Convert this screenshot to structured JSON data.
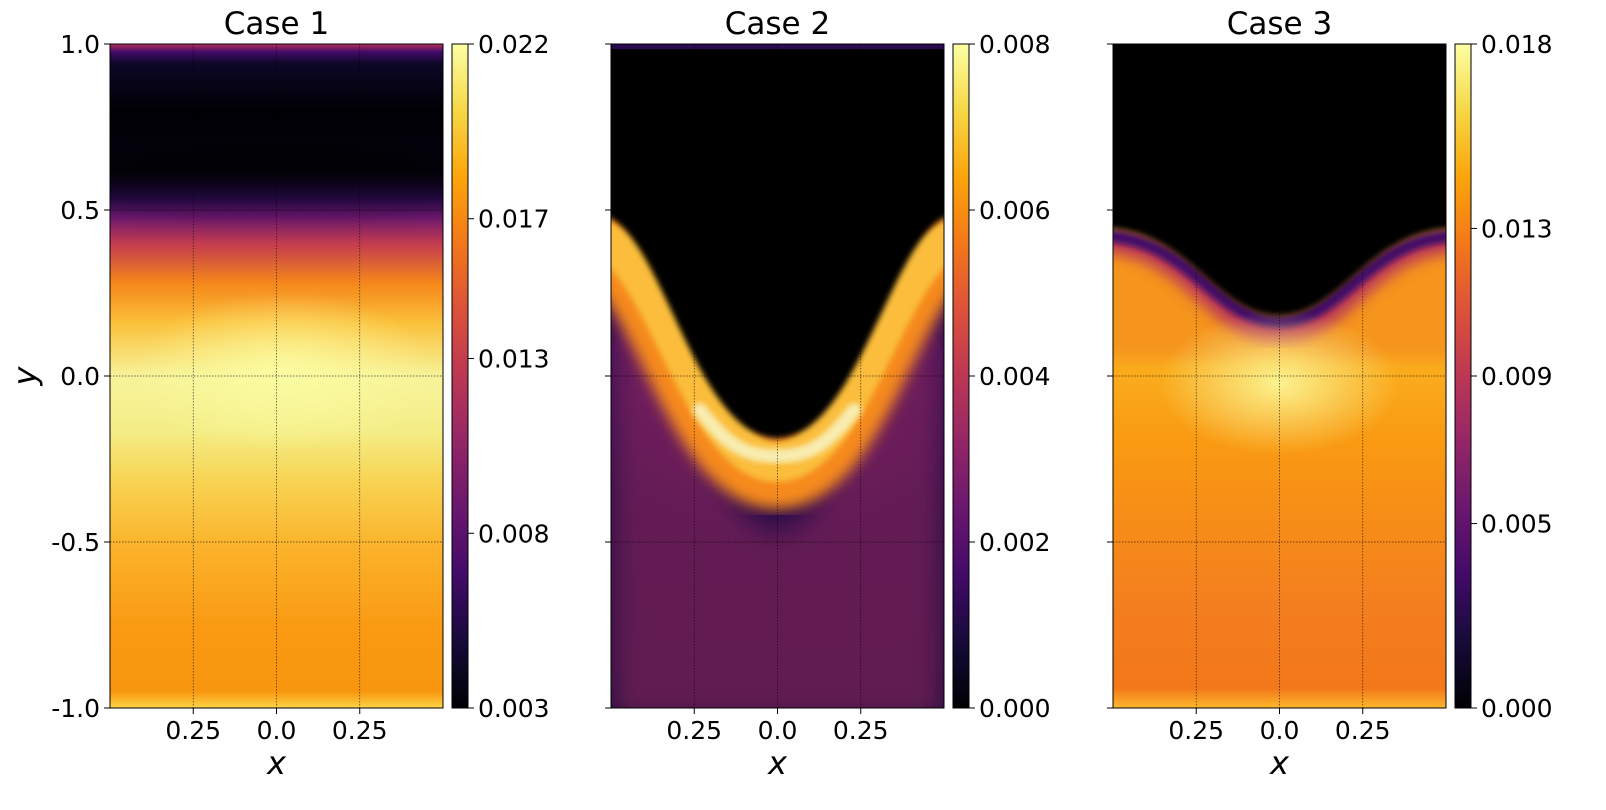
{
  "chart_data": [
    {
      "type": "heatmap",
      "title": "Case 1",
      "xlabel": "x",
      "ylabel": "y",
      "ylim": [
        -1.0,
        1.0
      ],
      "x_tick_labels": [
        "0.25",
        "0.0",
        "0.25"
      ],
      "y_tick_labels": [
        "-1.0",
        "-0.5",
        "0.0",
        "0.5",
        "1.0"
      ],
      "colormap": "inferno",
      "colorbar": {
        "range": [
          0.003,
          0.022
        ],
        "tick_labels": [
          "0.003",
          "0.008",
          "0.013",
          "0.017",
          "0.022"
        ]
      }
    },
    {
      "type": "heatmap",
      "title": "Case 2",
      "xlabel": "x",
      "ylabel": "",
      "ylim": [
        -1.0,
        1.0
      ],
      "x_tick_labels": [
        "0.25",
        "0.0",
        "0.25"
      ],
      "y_tick_labels": [],
      "colormap": "inferno",
      "colorbar": {
        "range": [
          0.0,
          0.008
        ],
        "tick_labels": [
          "0.000",
          "0.002",
          "0.004",
          "0.006",
          "0.008"
        ]
      }
    },
    {
      "type": "heatmap",
      "title": "Case 3",
      "xlabel": "x",
      "ylabel": "",
      "ylim": [
        -1.0,
        1.0
      ],
      "x_tick_labels": [
        "0.25",
        "0.0",
        "0.25"
      ],
      "y_tick_labels": [],
      "colormap": "inferno",
      "colorbar": {
        "range": [
          0.0,
          0.018
        ],
        "tick_labels": [
          "0.000",
          "0.005",
          "0.009",
          "0.013",
          "0.018"
        ]
      }
    }
  ]
}
